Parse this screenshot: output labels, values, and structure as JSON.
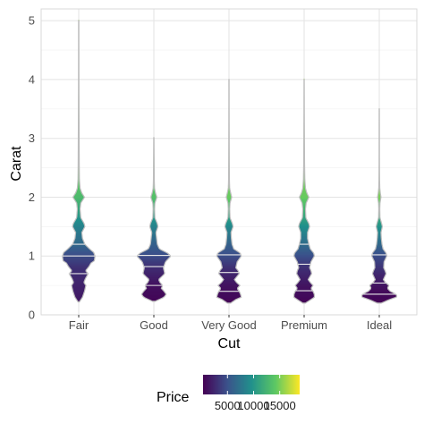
{
  "chart_data": {
    "type": "violin",
    "xlabel": "Cut",
    "ylabel": "Carat",
    "categories": [
      "Fair",
      "Good",
      "Very Good",
      "Premium",
      "Ideal"
    ],
    "ylim": [
      0,
      5.2
    ],
    "yticks": [
      0,
      1,
      2,
      3,
      4,
      5
    ],
    "grid": true,
    "legend": {
      "title": "Price",
      "position": "bottom",
      "min": 326,
      "max": 18823,
      "ticks": [
        5000,
        10000,
        15000
      ],
      "tick_labels": [
        "5000",
        "10000",
        "15000"
      ],
      "colormap": "viridis",
      "colors": [
        "#440154",
        "#3b528b",
        "#21908c",
        "#5dc863",
        "#fde725"
      ]
    },
    "violins": [
      {
        "category": "Fair",
        "quantiles": [
          0.7,
          1.0,
          1.2
        ],
        "profile": [
          [
            0.22,
            0.02
          ],
          [
            0.3,
            0.11
          ],
          [
            0.4,
            0.17
          ],
          [
            0.5,
            0.21
          ],
          [
            0.55,
            0.15
          ],
          [
            0.62,
            0.2
          ],
          [
            0.7,
            0.28
          ],
          [
            0.75,
            0.2
          ],
          [
            0.82,
            0.3
          ],
          [
            0.88,
            0.36
          ],
          [
            0.92,
            0.46
          ],
          [
            1.0,
            0.48
          ],
          [
            1.06,
            0.44
          ],
          [
            1.12,
            0.32
          ],
          [
            1.2,
            0.18
          ],
          [
            1.3,
            0.11
          ],
          [
            1.4,
            0.09
          ],
          [
            1.5,
            0.18
          ],
          [
            1.55,
            0.16
          ],
          [
            1.65,
            0.06
          ],
          [
            1.8,
            0.04
          ],
          [
            1.9,
            0.06
          ],
          [
            2.0,
            0.17
          ],
          [
            2.07,
            0.09
          ],
          [
            2.15,
            0.04
          ],
          [
            2.3,
            0.02
          ],
          [
            2.6,
            0.015
          ],
          [
            3.0,
            0.012
          ],
          [
            3.5,
            0.008
          ],
          [
            4.0,
            0.006
          ],
          [
            4.5,
            0.005
          ],
          [
            5.01,
            0.004
          ]
        ],
        "price_at": [
          [
            0.2,
            1500
          ],
          [
            0.8,
            3000
          ],
          [
            1.0,
            4500
          ],
          [
            1.2,
            6500
          ],
          [
            1.5,
            8500
          ],
          [
            2.0,
            13000
          ],
          [
            2.5,
            15000
          ],
          [
            5.0,
            16000
          ]
        ]
      },
      {
        "category": "Good",
        "quantiles": [
          0.5,
          0.82,
          1.01
        ],
        "profile": [
          [
            0.23,
            0.04
          ],
          [
            0.3,
            0.3
          ],
          [
            0.35,
            0.36
          ],
          [
            0.4,
            0.3
          ],
          [
            0.45,
            0.22
          ],
          [
            0.5,
            0.26
          ],
          [
            0.55,
            0.18
          ],
          [
            0.6,
            0.14
          ],
          [
            0.7,
            0.32
          ],
          [
            0.8,
            0.28
          ],
          [
            0.9,
            0.34
          ],
          [
            1.0,
            0.5
          ],
          [
            1.05,
            0.4
          ],
          [
            1.12,
            0.16
          ],
          [
            1.2,
            0.1
          ],
          [
            1.3,
            0.08
          ],
          [
            1.4,
            0.06
          ],
          [
            1.5,
            0.12
          ],
          [
            1.55,
            0.1
          ],
          [
            1.65,
            0.03
          ],
          [
            1.8,
            0.02
          ],
          [
            1.9,
            0.03
          ],
          [
            2.0,
            0.09
          ],
          [
            2.07,
            0.05
          ],
          [
            2.15,
            0.02
          ],
          [
            2.3,
            0.012
          ],
          [
            2.6,
            0.008
          ],
          [
            3.01,
            0.004
          ]
        ],
        "price_at": [
          [
            0.2,
            500
          ],
          [
            0.5,
            1200
          ],
          [
            0.8,
            2800
          ],
          [
            1.0,
            4600
          ],
          [
            1.2,
            6000
          ],
          [
            1.5,
            8500
          ],
          [
            2.0,
            13500
          ],
          [
            3.0,
            15000
          ]
        ]
      },
      {
        "category": "Very Good",
        "quantiles": [
          0.4,
          0.72,
          1.02
        ],
        "profile": [
          [
            0.2,
            0.05
          ],
          [
            0.26,
            0.2
          ],
          [
            0.3,
            0.36
          ],
          [
            0.35,
            0.34
          ],
          [
            0.4,
            0.3
          ],
          [
            0.45,
            0.24
          ],
          [
            0.5,
            0.32
          ],
          [
            0.55,
            0.22
          ],
          [
            0.6,
            0.16
          ],
          [
            0.7,
            0.3
          ],
          [
            0.75,
            0.27
          ],
          [
            0.8,
            0.2
          ],
          [
            0.9,
            0.24
          ],
          [
            1.0,
            0.36
          ],
          [
            1.05,
            0.33
          ],
          [
            1.12,
            0.14
          ],
          [
            1.2,
            0.09
          ],
          [
            1.3,
            0.07
          ],
          [
            1.4,
            0.06
          ],
          [
            1.5,
            0.12
          ],
          [
            1.55,
            0.1
          ],
          [
            1.65,
            0.03
          ],
          [
            1.8,
            0.02
          ],
          [
            1.9,
            0.03
          ],
          [
            2.0,
            0.08
          ],
          [
            2.07,
            0.05
          ],
          [
            2.15,
            0.02
          ],
          [
            2.3,
            0.012
          ],
          [
            2.6,
            0.008
          ],
          [
            3.0,
            0.006
          ],
          [
            3.5,
            0.004
          ],
          [
            4.0,
            0.003
          ]
        ],
        "price_at": [
          [
            0.2,
            500
          ],
          [
            0.5,
            1300
          ],
          [
            0.8,
            3000
          ],
          [
            1.0,
            4700
          ],
          [
            1.2,
            6000
          ],
          [
            1.5,
            9000
          ],
          [
            2.0,
            14500
          ],
          [
            4.0,
            15500
          ]
        ]
      },
      {
        "category": "Premium",
        "quantiles": [
          0.41,
          0.86,
          1.2
        ],
        "profile": [
          [
            0.2,
            0.04
          ],
          [
            0.26,
            0.2
          ],
          [
            0.3,
            0.3
          ],
          [
            0.35,
            0.3
          ],
          [
            0.4,
            0.26
          ],
          [
            0.45,
            0.2
          ],
          [
            0.5,
            0.26
          ],
          [
            0.55,
            0.18
          ],
          [
            0.6,
            0.12
          ],
          [
            0.7,
            0.22
          ],
          [
            0.75,
            0.2
          ],
          [
            0.8,
            0.16
          ],
          [
            0.9,
            0.2
          ],
          [
            1.0,
            0.3
          ],
          [
            1.05,
            0.28
          ],
          [
            1.12,
            0.18
          ],
          [
            1.2,
            0.14
          ],
          [
            1.3,
            0.1
          ],
          [
            1.4,
            0.1
          ],
          [
            1.5,
            0.16
          ],
          [
            1.55,
            0.14
          ],
          [
            1.65,
            0.05
          ],
          [
            1.8,
            0.04
          ],
          [
            1.9,
            0.06
          ],
          [
            2.0,
            0.14
          ],
          [
            2.07,
            0.08
          ],
          [
            2.15,
            0.04
          ],
          [
            2.3,
            0.02
          ],
          [
            2.6,
            0.012
          ],
          [
            3.0,
            0.008
          ],
          [
            3.5,
            0.005
          ],
          [
            4.01,
            0.003
          ]
        ],
        "price_at": [
          [
            0.2,
            500
          ],
          [
            0.5,
            1400
          ],
          [
            0.8,
            3000
          ],
          [
            1.0,
            4800
          ],
          [
            1.2,
            6800
          ],
          [
            1.5,
            9500
          ],
          [
            2.0,
            14500
          ],
          [
            4.0,
            16000
          ]
        ]
      },
      {
        "category": "Ideal",
        "quantiles": [
          0.35,
          0.54,
          1.02
        ],
        "profile": [
          [
            0.2,
            0.06
          ],
          [
            0.26,
            0.3
          ],
          [
            0.3,
            0.5
          ],
          [
            0.33,
            0.52
          ],
          [
            0.36,
            0.46
          ],
          [
            0.4,
            0.32
          ],
          [
            0.45,
            0.24
          ],
          [
            0.5,
            0.28
          ],
          [
            0.55,
            0.18
          ],
          [
            0.6,
            0.12
          ],
          [
            0.7,
            0.2
          ],
          [
            0.75,
            0.17
          ],
          [
            0.8,
            0.13
          ],
          [
            0.9,
            0.14
          ],
          [
            1.0,
            0.22
          ],
          [
            1.05,
            0.2
          ],
          [
            1.12,
            0.11
          ],
          [
            1.2,
            0.08
          ],
          [
            1.3,
            0.06
          ],
          [
            1.4,
            0.05
          ],
          [
            1.5,
            0.09
          ],
          [
            1.55,
            0.07
          ],
          [
            1.65,
            0.02
          ],
          [
            1.8,
            0.015
          ],
          [
            1.9,
            0.02
          ],
          [
            2.0,
            0.05
          ],
          [
            2.07,
            0.03
          ],
          [
            2.15,
            0.015
          ],
          [
            2.3,
            0.008
          ],
          [
            2.6,
            0.005
          ],
          [
            3.0,
            0.004
          ],
          [
            3.5,
            0.003
          ]
        ],
        "price_at": [
          [
            0.2,
            500
          ],
          [
            0.4,
            900
          ],
          [
            0.7,
            2500
          ],
          [
            1.0,
            4600
          ],
          [
            1.2,
            6500
          ],
          [
            1.5,
            9800
          ],
          [
            2.0,
            15000
          ],
          [
            3.5,
            16000
          ]
        ]
      }
    ]
  }
}
